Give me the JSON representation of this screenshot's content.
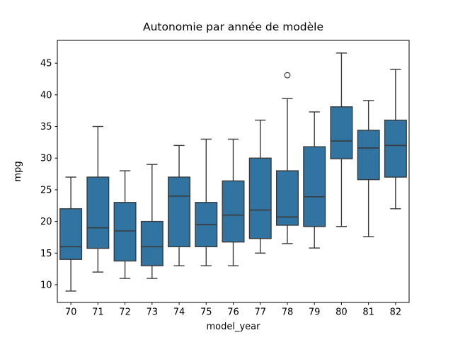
{
  "chart_data": {
    "type": "box",
    "title": "Autonomie par année de modèle",
    "xlabel": "model_year",
    "ylabel": "mpg",
    "categories": [
      "70",
      "71",
      "72",
      "73",
      "74",
      "75",
      "76",
      "77",
      "78",
      "79",
      "80",
      "81",
      "82"
    ],
    "yticks": [
      10,
      15,
      20,
      25,
      30,
      35,
      40,
      45
    ],
    "ylim": [
      7.2,
      48.6
    ],
    "grid": false,
    "legend": null,
    "colors": {
      "box_fill": "#3274A1",
      "box_edge": "#3A3A3A",
      "whisker": "#3A3A3A",
      "median": "#3A3A3A",
      "flier_edge": "#3A3A3A",
      "spine": "#000000",
      "background": "#ffffff"
    },
    "series": [
      {
        "category": "70",
        "whislo": 9,
        "q1": 14,
        "med": 16,
        "q3": 22,
        "whishi": 27,
        "fliers": []
      },
      {
        "category": "71",
        "whislo": 12,
        "q1": 15.75,
        "med": 19,
        "q3": 27,
        "whishi": 35,
        "fliers": []
      },
      {
        "category": "72",
        "whislo": 11,
        "q1": 13.75,
        "med": 18.5,
        "q3": 23,
        "whishi": 28,
        "fliers": []
      },
      {
        "category": "73",
        "whislo": 11,
        "q1": 13,
        "med": 16,
        "q3": 20,
        "whishi": 29,
        "fliers": []
      },
      {
        "category": "74",
        "whislo": 13,
        "q1": 16,
        "med": 24,
        "q3": 27,
        "whishi": 32,
        "fliers": []
      },
      {
        "category": "75",
        "whislo": 13,
        "q1": 16,
        "med": 19.5,
        "q3": 23,
        "whishi": 33,
        "fliers": []
      },
      {
        "category": "76",
        "whislo": 13,
        "q1": 16.75,
        "med": 21,
        "q3": 26.4,
        "whishi": 33,
        "fliers": []
      },
      {
        "category": "77",
        "whislo": 15,
        "q1": 17.3,
        "med": 21.8,
        "q3": 30,
        "whishi": 36,
        "fliers": []
      },
      {
        "category": "78",
        "whislo": 16.5,
        "q1": 19.4,
        "med": 20.7,
        "q3": 28,
        "whishi": 39.4,
        "fliers": [
          43.1
        ]
      },
      {
        "category": "79",
        "whislo": 15.8,
        "q1": 19.2,
        "med": 23.9,
        "q3": 31.8,
        "whishi": 37.3,
        "fliers": []
      },
      {
        "category": "80",
        "whislo": 19.2,
        "q1": 29.9,
        "med": 32.7,
        "q3": 38.1,
        "whishi": 46.6,
        "fliers": []
      },
      {
        "category": "81",
        "whislo": 17.6,
        "q1": 26.6,
        "med": 31.6,
        "q3": 34.4,
        "whishi": 39.1,
        "fliers": []
      },
      {
        "category": "82",
        "whislo": 22,
        "q1": 27,
        "med": 32,
        "q3": 36,
        "whishi": 44,
        "fliers": []
      }
    ]
  }
}
